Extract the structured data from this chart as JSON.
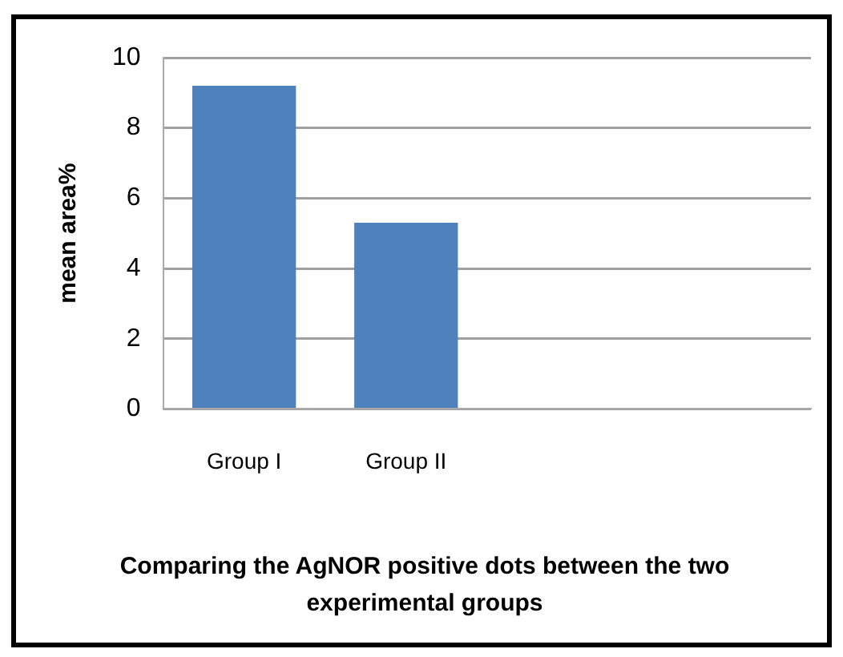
{
  "chart_data": {
    "type": "bar",
    "xlabel": "Comparing the AgNOR positive dots between the two experimental groups",
    "ylabel": "mean area%",
    "categories": [
      "Group I",
      "Group II",
      null,
      null
    ],
    "values": [
      9.2,
      5.3,
      null,
      null
    ],
    "color": "#4f81bd",
    "ylim": [
      0,
      10
    ],
    "yticks": [
      0,
      2,
      4,
      6,
      8,
      10
    ],
    "grid": "y",
    "legend": false
  }
}
